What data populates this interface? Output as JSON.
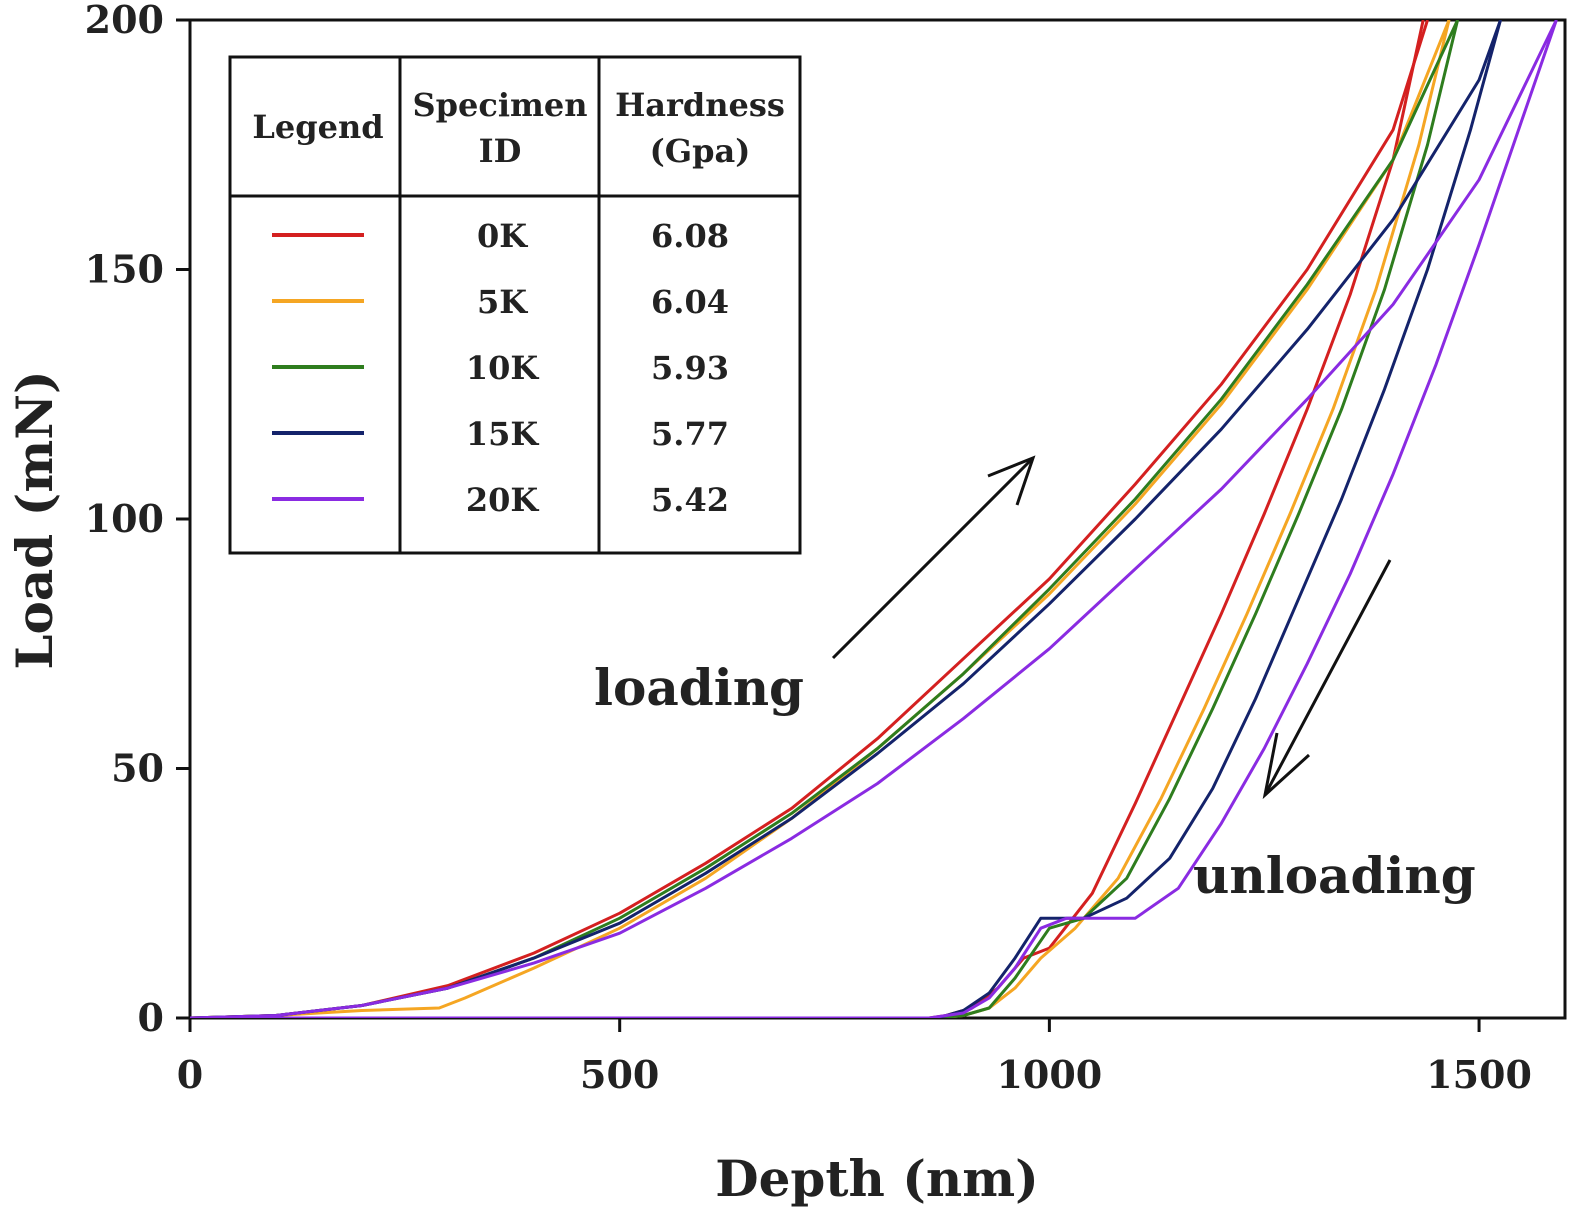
{
  "chart_data": {
    "type": "line",
    "xlabel": "Depth (nm)",
    "ylabel": "Load (mN)",
    "xlim": [
      0,
      1600
    ],
    "ylim": [
      0,
      200
    ],
    "xticks": [
      0,
      500,
      1000,
      1500
    ],
    "yticks": [
      0,
      50,
      100,
      150,
      200
    ],
    "grid": false,
    "legend_position": "top-left",
    "legend_table": {
      "headers": [
        "Legend",
        "Specimen ID",
        "Hardness (Gpa)"
      ],
      "rows": [
        {
          "id": "0K",
          "hardness": "6.08",
          "color": "#d42020"
        },
        {
          "id": "5K",
          "hardness": "6.04",
          "color": "#f5a623"
        },
        {
          "id": "10K",
          "hardness": "5.93",
          "color": "#2e7d1e"
        },
        {
          "id": "15K",
          "hardness": "5.77",
          "color": "#14236b"
        },
        {
          "id": "20K",
          "hardness": "5.42",
          "color": "#8a2be2"
        }
      ]
    },
    "annotations": [
      {
        "text": "loading",
        "x": 580,
        "y": 65
      },
      {
        "text": "unloading",
        "x": 1170,
        "y": 28
      }
    ],
    "series": [
      {
        "name": "0K",
        "color": "#d42020",
        "loading": {
          "x": [
            0,
            100,
            200,
            300,
            400,
            500,
            600,
            700,
            800,
            900,
            1000,
            1100,
            1200,
            1300,
            1400,
            1440
          ],
          "y": [
            0,
            0.5,
            2.5,
            6.5,
            13,
            21,
            31,
            42,
            56,
            72,
            88,
            107,
            127,
            150,
            178,
            200
          ]
        },
        "unloading": {
          "x": [
            1435,
            1400,
            1350,
            1300,
            1250,
            1200,
            1150,
            1100,
            1050,
            1000,
            970,
            940,
            910,
            880,
            860,
            600,
            0
          ],
          "y": [
            200,
            172,
            145,
            122,
            101,
            81,
            62,
            43,
            25,
            14,
            12,
            6,
            2,
            0.5,
            0,
            0,
            0
          ]
        }
      },
      {
        "name": "5K",
        "color": "#f5a623",
        "loading": {
          "x": [
            0,
            100,
            200,
            290,
            320,
            400,
            500,
            600,
            700,
            800,
            900,
            1000,
            1100,
            1200,
            1300,
            1400,
            1465
          ],
          "y": [
            0,
            0.5,
            1.5,
            2,
            4,
            10,
            18,
            28,
            40,
            54,
            69,
            85,
            103,
            123,
            146,
            172,
            200
          ]
        },
        "unloading": {
          "x": [
            1465,
            1430,
            1380,
            1330,
            1280,
            1230,
            1180,
            1130,
            1080,
            1030,
            990,
            960,
            930,
            900,
            870,
            600,
            0
          ],
          "y": [
            200,
            175,
            146,
            122,
            101,
            81,
            62,
            44,
            28,
            18,
            12,
            6,
            2,
            0.5,
            0,
            0,
            0
          ]
        }
      },
      {
        "name": "10K",
        "color": "#2e7d1e",
        "loading": {
          "x": [
            0,
            100,
            200,
            300,
            400,
            500,
            600,
            700,
            800,
            900,
            1000,
            1100,
            1200,
            1300,
            1400,
            1475
          ],
          "y": [
            0,
            0.5,
            2.5,
            6,
            12,
            20,
            30,
            41,
            54,
            69,
            86,
            104,
            124,
            147,
            172,
            200
          ]
        },
        "unloading": {
          "x": [
            1475,
            1440,
            1390,
            1340,
            1290,
            1240,
            1190,
            1140,
            1090,
            1040,
            1000,
            960,
            930,
            900,
            870,
            600,
            0
          ],
          "y": [
            200,
            175,
            146,
            122,
            101,
            81,
            62,
            44,
            28,
            20,
            18,
            8,
            2,
            0.5,
            0,
            0,
            0
          ]
        }
      },
      {
        "name": "15K",
        "color": "#14236b",
        "loading": {
          "x": [
            0,
            100,
            200,
            300,
            400,
            500,
            600,
            700,
            800,
            900,
            1000,
            1100,
            1200,
            1300,
            1400,
            1500,
            1525
          ],
          "y": [
            0,
            0.5,
            2.5,
            6,
            12,
            19,
            29,
            40,
            53,
            67,
            83,
            100,
            118,
            138,
            160,
            188,
            200
          ]
        },
        "unloading": {
          "x": [
            1525,
            1490,
            1440,
            1390,
            1340,
            1290,
            1240,
            1190,
            1140,
            1090,
            1040,
            990,
            960,
            930,
            900,
            870,
            600,
            0
          ],
          "y": [
            200,
            178,
            150,
            126,
            104,
            84,
            64,
            46,
            32,
            24,
            20,
            20,
            12,
            5,
            1.5,
            0,
            0,
            0
          ]
        }
      },
      {
        "name": "20K",
        "color": "#8a2be2",
        "loading": {
          "x": [
            0,
            100,
            200,
            300,
            400,
            500,
            600,
            700,
            800,
            900,
            1000,
            1100,
            1200,
            1300,
            1400,
            1500,
            1590
          ],
          "y": [
            0,
            0.5,
            2.5,
            6,
            11,
            17,
            26,
            36,
            47,
            60,
            74,
            90,
            106,
            124,
            143,
            168,
            200
          ]
        },
        "unloading": {
          "x": [
            1590,
            1550,
            1500,
            1450,
            1400,
            1350,
            1300,
            1250,
            1200,
            1150,
            1100,
            1050,
            1020,
            990,
            960,
            930,
            900,
            860,
            600,
            0
          ],
          "y": [
            200,
            180,
            155,
            131,
            109,
            89,
            71,
            54,
            39,
            26,
            20,
            20,
            20,
            18,
            10,
            4,
            1,
            0,
            0,
            0
          ]
        }
      }
    ]
  }
}
